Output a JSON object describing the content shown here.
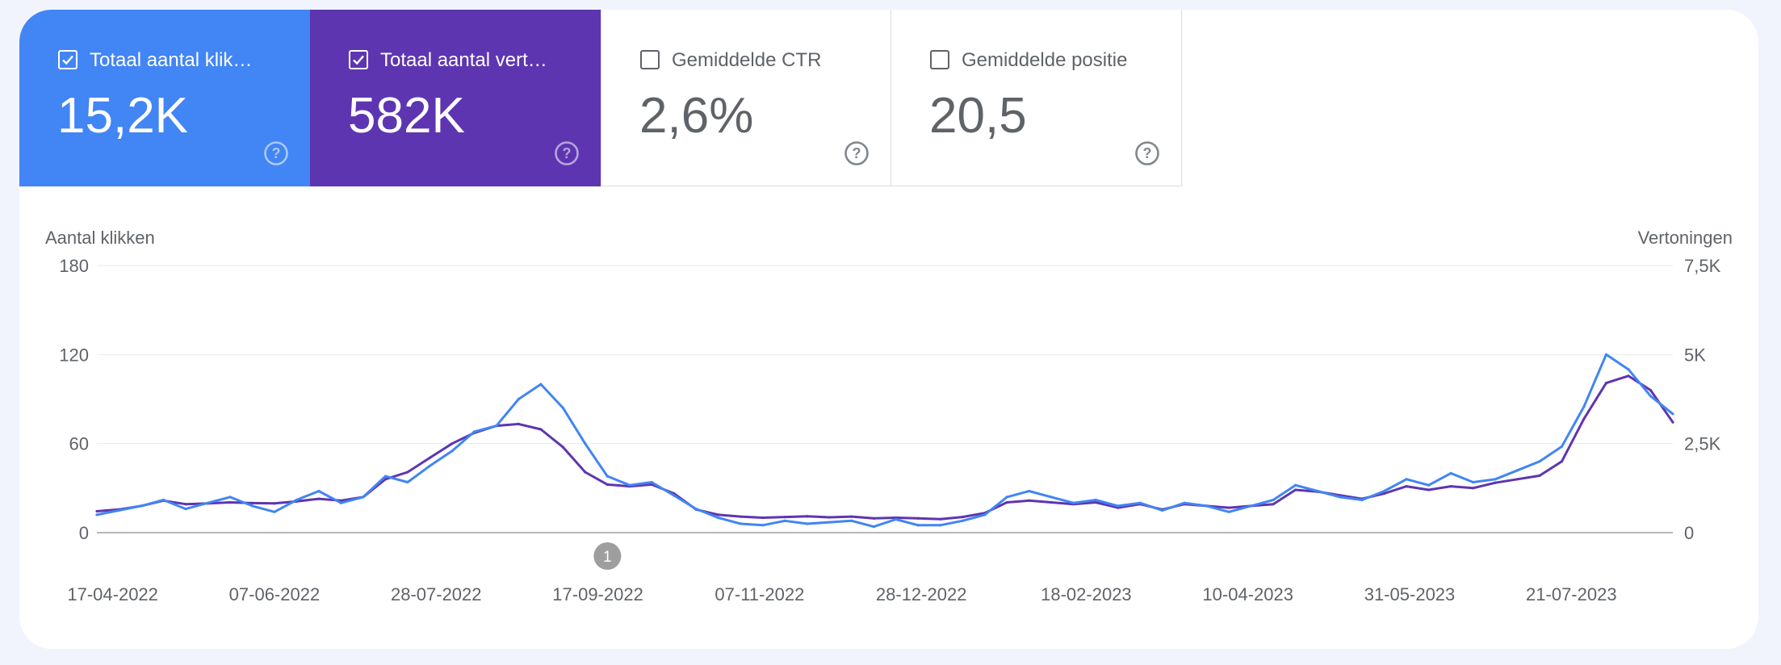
{
  "metrics": [
    {
      "label": "Totaal aantal klik…",
      "value": "15,2K",
      "checked": true
    },
    {
      "label": "Totaal aantal vert…",
      "value": "582K",
      "checked": true
    },
    {
      "label": "Gemiddelde CTR",
      "value": "2,6%",
      "checked": false
    },
    {
      "label": "Gemiddelde positie",
      "value": "20,5",
      "checked": false
    }
  ],
  "annotation": {
    "label": "1"
  },
  "colors": {
    "clicks": "#4285f4",
    "impressions": "#5e35b1",
    "grid": "#e8eaed",
    "axis": "#9aa0a6"
  },
  "chart_data": {
    "type": "line",
    "ylabel": "Aantal klikken",
    "y2label": "Vertoningen",
    "ylim": [
      0,
      180
    ],
    "y2lim": [
      0,
      7500
    ],
    "yticks": [
      "0",
      "60",
      "120",
      "180"
    ],
    "y2ticks": [
      "0",
      "2,5K",
      "5K",
      "7,5K"
    ],
    "xticks": [
      "17-04-2022",
      "07-06-2022",
      "28-07-2022",
      "17-09-2022",
      "07-11-2022",
      "28-12-2022",
      "18-02-2023",
      "10-04-2023",
      "31-05-2023",
      "21-07-2023"
    ],
    "x": [
      "2022-04-12",
      "2022-04-19",
      "2022-04-26",
      "2022-05-03",
      "2022-05-10",
      "2022-05-17",
      "2022-05-24",
      "2022-05-31",
      "2022-06-07",
      "2022-06-14",
      "2022-06-21",
      "2022-06-28",
      "2022-07-05",
      "2022-07-12",
      "2022-07-19",
      "2022-07-26",
      "2022-08-02",
      "2022-08-09",
      "2022-08-16",
      "2022-08-23",
      "2022-08-30",
      "2022-09-06",
      "2022-09-13",
      "2022-09-20",
      "2022-09-27",
      "2022-10-04",
      "2022-10-11",
      "2022-10-18",
      "2022-10-25",
      "2022-11-01",
      "2022-11-08",
      "2022-11-15",
      "2022-11-22",
      "2022-11-29",
      "2022-12-06",
      "2022-12-13",
      "2022-12-20",
      "2022-12-27",
      "2023-01-03",
      "2023-01-10",
      "2023-01-17",
      "2023-01-24",
      "2023-01-31",
      "2023-02-07",
      "2023-02-14",
      "2023-02-21",
      "2023-02-28",
      "2023-03-07",
      "2023-03-14",
      "2023-03-21",
      "2023-03-28",
      "2023-04-04",
      "2023-04-11",
      "2023-04-18",
      "2023-04-25",
      "2023-05-02",
      "2023-05-09",
      "2023-05-16",
      "2023-05-23",
      "2023-05-30",
      "2023-06-06",
      "2023-06-13",
      "2023-06-20",
      "2023-06-27",
      "2023-07-04",
      "2023-07-11",
      "2023-07-18",
      "2023-07-25",
      "2023-08-01",
      "2023-08-08",
      "2023-08-15",
      "2023-08-22"
    ],
    "series": [
      {
        "name": "Totaal aantal klikken",
        "axis": "left",
        "color": "#4285f4",
        "values": [
          12,
          15,
          18,
          22,
          16,
          20,
          24,
          18,
          14,
          22,
          28,
          20,
          24,
          38,
          34,
          45,
          55,
          68,
          72,
          90,
          100,
          84,
          60,
          38,
          32,
          34,
          25,
          16,
          10,
          6,
          5,
          8,
          6,
          7,
          8,
          4,
          9,
          5,
          5,
          8,
          12,
          24,
          28,
          24,
          20,
          22,
          18,
          20,
          15,
          20,
          18,
          14,
          18,
          22,
          32,
          28,
          24,
          22,
          28,
          36,
          32,
          40,
          34,
          36,
          42,
          48,
          58,
          85,
          120,
          110,
          92,
          80
        ]
      },
      {
        "name": "Vertoningen",
        "axis": "right",
        "color": "#5e35b1",
        "values": [
          600,
          650,
          750,
          900,
          800,
          820,
          850,
          830,
          820,
          880,
          950,
          900,
          1000,
          1500,
          1700,
          2100,
          2500,
          2800,
          3000,
          3050,
          2900,
          2400,
          1700,
          1350,
          1300,
          1350,
          1100,
          650,
          500,
          450,
          420,
          440,
          460,
          430,
          450,
          400,
          420,
          400,
          380,
          440,
          550,
          850,
          900,
          850,
          800,
          850,
          700,
          800,
          650,
          800,
          750,
          700,
          750,
          800,
          1200,
          1150,
          1050,
          950,
          1100,
          1300,
          1200,
          1300,
          1250,
          1400,
          1500,
          1600,
          2000,
          3200,
          4200,
          4400,
          4000,
          3100
        ]
      }
    ]
  }
}
